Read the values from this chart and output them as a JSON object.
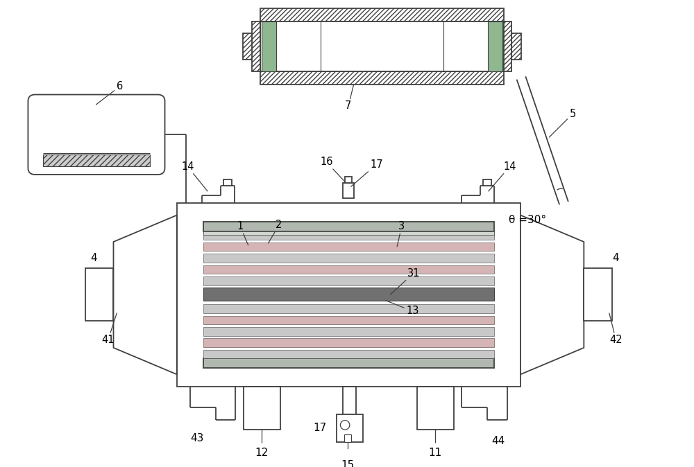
{
  "bg": "#ffffff",
  "lc": "#404040",
  "lw": 1.3,
  "green": "#90b890",
  "pink": "#d4b4b4",
  "gray_stripe": "#c8c8c8",
  "dark_mem": "#707070",
  "plate_gray": "#b0b8b0",
  "theta_label": "θ =30°"
}
